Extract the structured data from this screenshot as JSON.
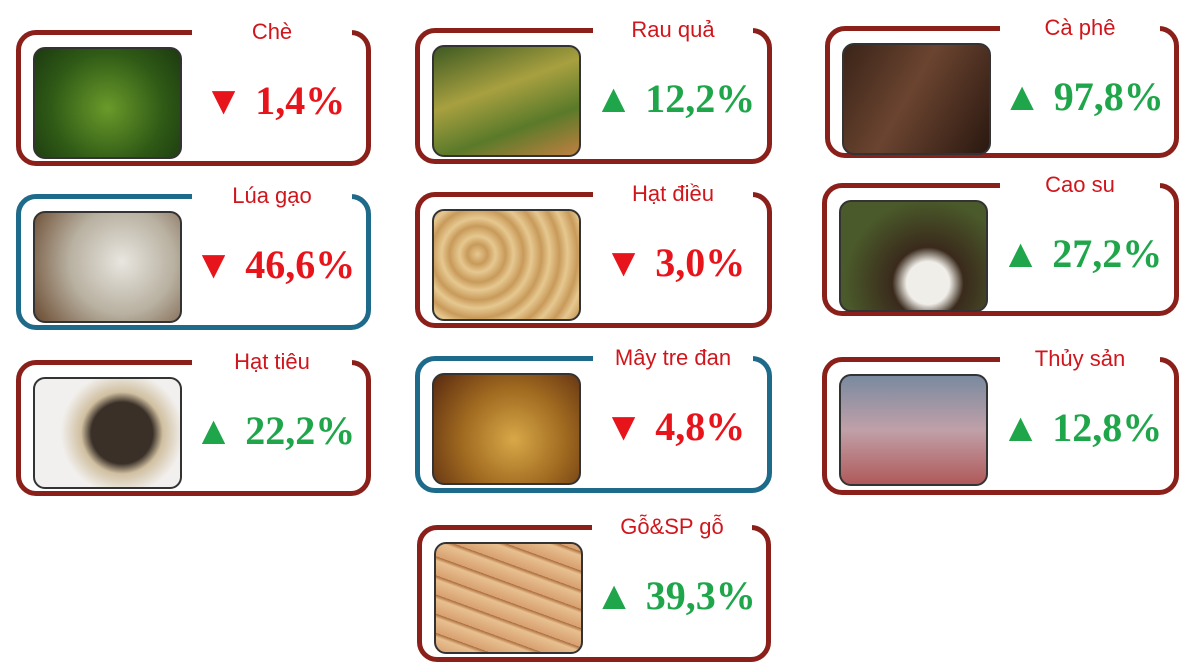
{
  "cards": [
    {
      "label": "Chè",
      "arrow": "▼",
      "change": "1,4%",
      "color": "#e8141b",
      "border": "#8b1f1a"
    },
    {
      "label": "Rau quả",
      "arrow": "▲",
      "change": "12,2%",
      "color": "#1fa64a",
      "border": "#8b1f1a"
    },
    {
      "label": "Cà phê",
      "arrow": "▲",
      "change": "97,8%",
      "color": "#1fa64a",
      "border": "#8b1f1a"
    },
    {
      "label": "Lúa gạo",
      "arrow": "▼",
      "change": "46,6%",
      "color": "#e8141b",
      "border": "#1e6a8a"
    },
    {
      "label": "Hạt điều",
      "arrow": "▼",
      "change": "3,0%",
      "color": "#e8141b",
      "border": "#8b1f1a"
    },
    {
      "label": "Cao su",
      "arrow": "▲",
      "change": "27,2%",
      "color": "#1fa64a",
      "border": "#8b1f1a"
    },
    {
      "label": "Hạt tiêu",
      "arrow": "▲",
      "change": "22,2%",
      "color": "#1fa64a",
      "border": "#8b1f1a"
    },
    {
      "label": "Mây tre đan",
      "arrow": "▼",
      "change": "4,8%",
      "color": "#e8141b",
      "border": "#1e6a8a"
    },
    {
      "label": "Thủy sản",
      "arrow": "▲",
      "change": "12,8%",
      "color": "#1fa64a",
      "border": "#8b1f1a"
    },
    {
      "label": "Gỗ&SP gỗ",
      "arrow": "▲",
      "change": "39,3%",
      "color": "#1fa64a",
      "border": "#8b1f1a"
    }
  ]
}
